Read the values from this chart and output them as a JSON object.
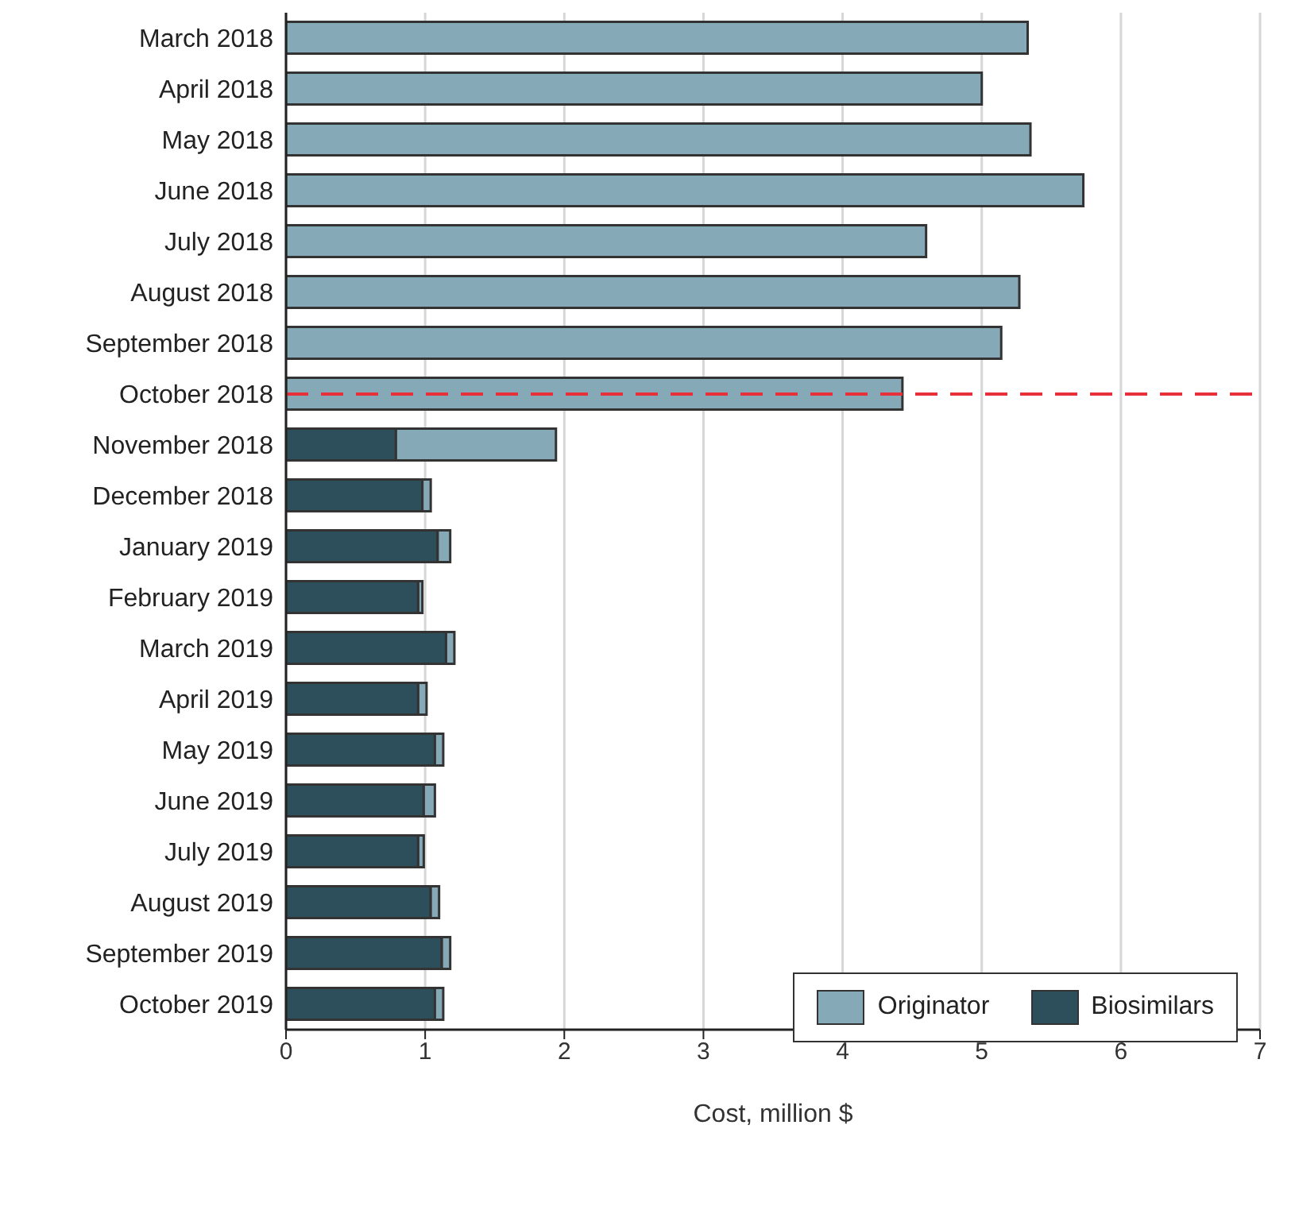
{
  "chart_data": {
    "type": "bar",
    "orientation": "horizontal",
    "stacked": true,
    "xlabel": "Cost, million $",
    "categories": [
      "March 2018",
      "April 2018",
      "May 2018",
      "June 2018",
      "July 2018",
      "August 2018",
      "September 2018",
      "October 2018",
      "November 2018",
      "December 2018",
      "January 2019",
      "February 2019",
      "March 2019",
      "April 2019",
      "May 2019",
      "June 2019",
      "July 2019",
      "August 2019",
      "September 2019",
      "October 2019"
    ],
    "series": [
      {
        "name": "Biosimilars",
        "color": "#2d4f5c",
        "values": [
          null,
          null,
          null,
          null,
          null,
          null,
          null,
          null,
          0.79,
          0.98,
          1.09,
          0.95,
          1.15,
          0.95,
          1.07,
          0.99,
          0.95,
          1.04,
          1.12,
          1.07
        ]
      },
      {
        "name": "Originator",
        "color": "#86a9b8",
        "values": [
          5.33,
          5.0,
          5.35,
          5.73,
          4.6,
          5.27,
          5.14,
          4.43,
          1.15,
          0.06,
          0.09,
          0.03,
          0.06,
          0.06,
          0.06,
          0.08,
          0.04,
          0.06,
          0.06,
          0.06
        ]
      }
    ],
    "xlim": [
      0,
      7
    ],
    "xticks": [
      0,
      1,
      2,
      3,
      4,
      5,
      6,
      7
    ],
    "grid": "x",
    "legend": "bottom right",
    "ref_lines": [
      {
        "axis": "y",
        "value": "October 2018",
        "color": "#e8303a",
        "line_style": "dashed"
      }
    ]
  }
}
